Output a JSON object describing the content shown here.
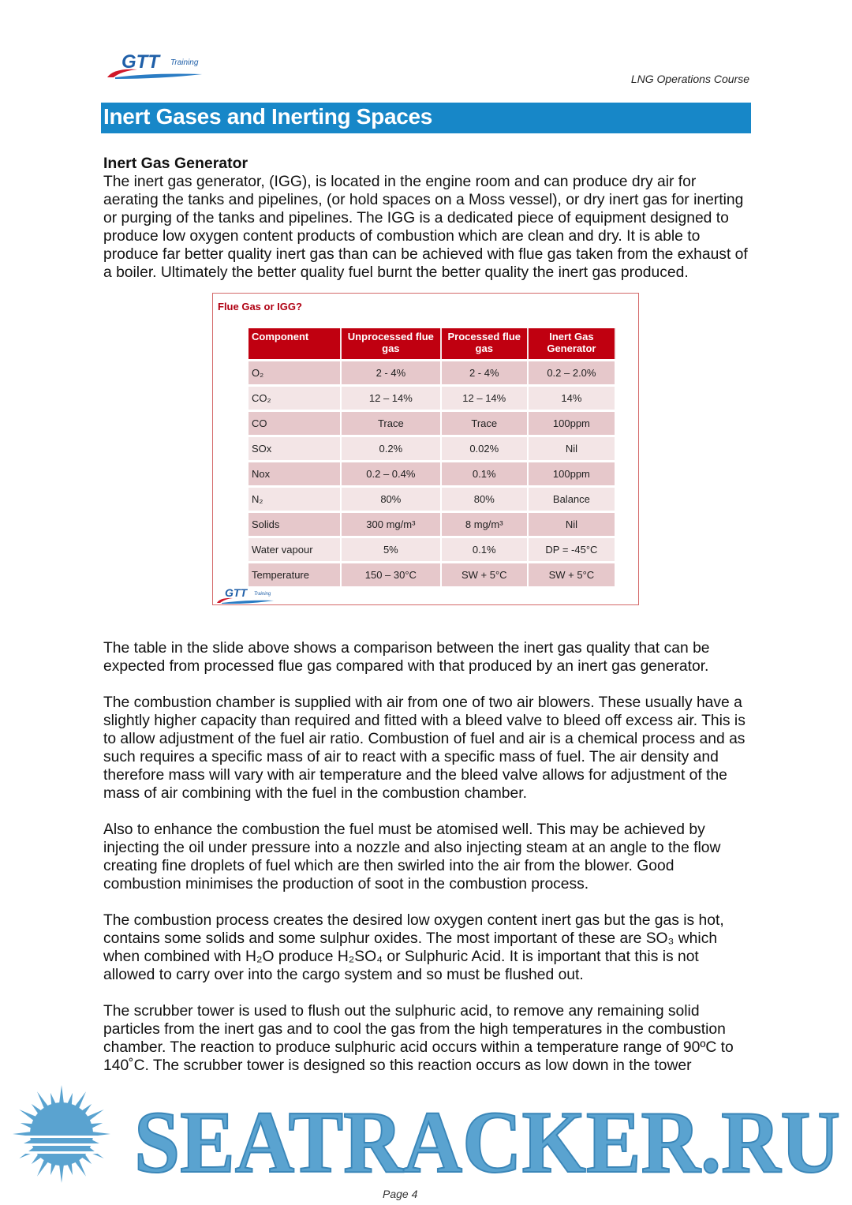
{
  "header": {
    "logo_text": "GTT Training",
    "course": "LNG Operations Course"
  },
  "banner": {
    "title": "Inert Gases and Inerting Spaces"
  },
  "section": {
    "heading": "Inert Gas Generator",
    "intro": "The inert gas generator, (IGG), is located in the engine room and can produce dry air for aerating the tanks and pipelines, (or hold spaces on a Moss vessel), or dry inert gas for inerting or purging of the tanks and pipelines.  The IGG is a dedicated piece of equipment designed to produce low oxygen content products of combustion which are clean and dry.  It is able to produce far better quality inert gas than can be achieved with flue gas taken from the exhaust of a boiler.  Ultimately the better quality fuel burnt the better quality the inert gas produced."
  },
  "slide": {
    "title": "Flue Gas or IGG?",
    "logo_text": "GTT Training",
    "columns": [
      "Component",
      "Unprocessed flue gas",
      "Processed flue gas",
      "Inert Gas Generator"
    ],
    "rows": [
      [
        "O₂",
        "2 - 4%",
        "2 - 4%",
        "0.2 – 2.0%"
      ],
      [
        "CO₂",
        "12 – 14%",
        "12 – 14%",
        "14%"
      ],
      [
        "CO",
        "Trace",
        "Trace",
        "100ppm"
      ],
      [
        "SOx",
        "0.2%",
        "0.02%",
        "Nil"
      ],
      [
        "Nox",
        "0.2 – 0.4%",
        "0.1%",
        "100ppm"
      ],
      [
        "N₂",
        "80%",
        "80%",
        "Balance"
      ],
      [
        "Solids",
        "300 mg/m³",
        "8 mg/m³",
        "Nil"
      ],
      [
        "Water vapour",
        "5%",
        "0.1%",
        "DP = -45°C"
      ],
      [
        "Temperature",
        "150 – 30°C",
        "SW + 5°C",
        "SW + 5°C"
      ]
    ]
  },
  "paragraphs": [
    "The table in the slide above shows a comparison between the inert gas quality that can be expected from processed flue gas compared with that produced by an inert gas generator.",
    "The combustion chamber is supplied with air from one of two air blowers.  These usually have a slightly higher capacity than required and fitted with a bleed valve to bleed off excess air.  This is to allow adjustment of the fuel air ratio.  Combustion of fuel and air is a chemical process and as such requires a specific mass of air to react with a specific mass of fuel.  The air density and therefore mass will vary with air temperature and the bleed valve allows for adjustment of the mass of air combining with the fuel in the combustion chamber.",
    "Also to enhance the combustion the fuel must be atomised well.  This may be achieved by injecting the oil under pressure into a nozzle and also injecting steam at an angle to the flow creating fine droplets of fuel which are then swirled into the air from the blower.  Good combustion minimises the production of soot in the combustion process.",
    "The combustion process creates the desired low oxygen content inert gas but the gas is hot, contains some solids and some sulphur oxides.  The most important of these are SO₃ which when combined with H₂O produce H₂SO₄ or Sulphuric Acid.  It is important that this is not allowed to carry over into the cargo system and so must be flushed out.",
    "The scrubber tower is used to flush out the sulphuric acid, to remove any remaining solid particles from the inert gas and to cool the gas from the high temperatures in the combustion chamber.  The reaction to produce sulphuric acid occurs within a temperature range of 90ºC to 140˚C.  The scrubber tower is designed so this reaction occurs as low down in the tower"
  ],
  "footer": {
    "page": "Page 4"
  },
  "watermark": {
    "text": "SEATRACKER.RU",
    "color": "#5aa3d0"
  },
  "colors": {
    "banner": "#1787c8",
    "table_header": "#c00010",
    "row_odd": "#e6c8cb",
    "row_even": "#f3e5e6"
  }
}
